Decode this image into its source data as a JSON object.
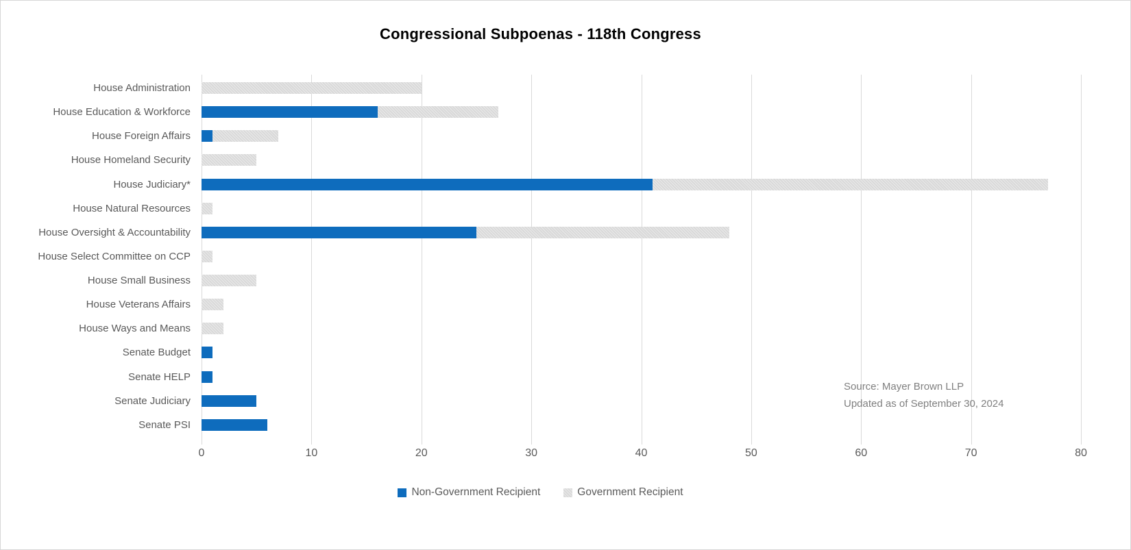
{
  "chart_data": {
    "type": "bar",
    "orientation": "horizontal",
    "stacked": true,
    "title": "Congressional Subpoenas - 118th Congress",
    "categories": [
      "House Administration",
      "House Education & Workforce",
      "House Foreign Affairs",
      "House Homeland Security",
      "House Judiciary*",
      "House Natural Resources",
      "House Oversight & Accountability",
      "House Select Committee on CCP",
      "House Small Business",
      "House Veterans Affairs",
      "House Ways and Means",
      "Senate Budget",
      "Senate HELP",
      "Senate Judiciary",
      "Senate PSI"
    ],
    "series": [
      {
        "name": "Non-Government Recipient",
        "color": "#0e6cbd",
        "values": [
          0,
          16,
          1,
          0,
          41,
          0,
          25,
          0,
          0,
          0,
          0,
          1,
          1,
          5,
          6
        ]
      },
      {
        "name": "Government Recipient",
        "color": "#d9d9d9",
        "values": [
          20,
          11,
          6,
          5,
          36,
          1,
          23,
          1,
          5,
          2,
          2,
          0,
          0,
          0,
          0
        ]
      }
    ],
    "x_axis": {
      "min": 0,
      "max": 80,
      "tick_interval": 10,
      "tick_labels": [
        "0",
        "10",
        "20",
        "30",
        "40",
        "50",
        "60",
        "70",
        "80"
      ]
    },
    "grid": true,
    "legend_position": "bottom"
  },
  "annotation": {
    "line1": "Source: Mayer Brown LLP",
    "line2": "Updated as of September 30, 2024"
  }
}
